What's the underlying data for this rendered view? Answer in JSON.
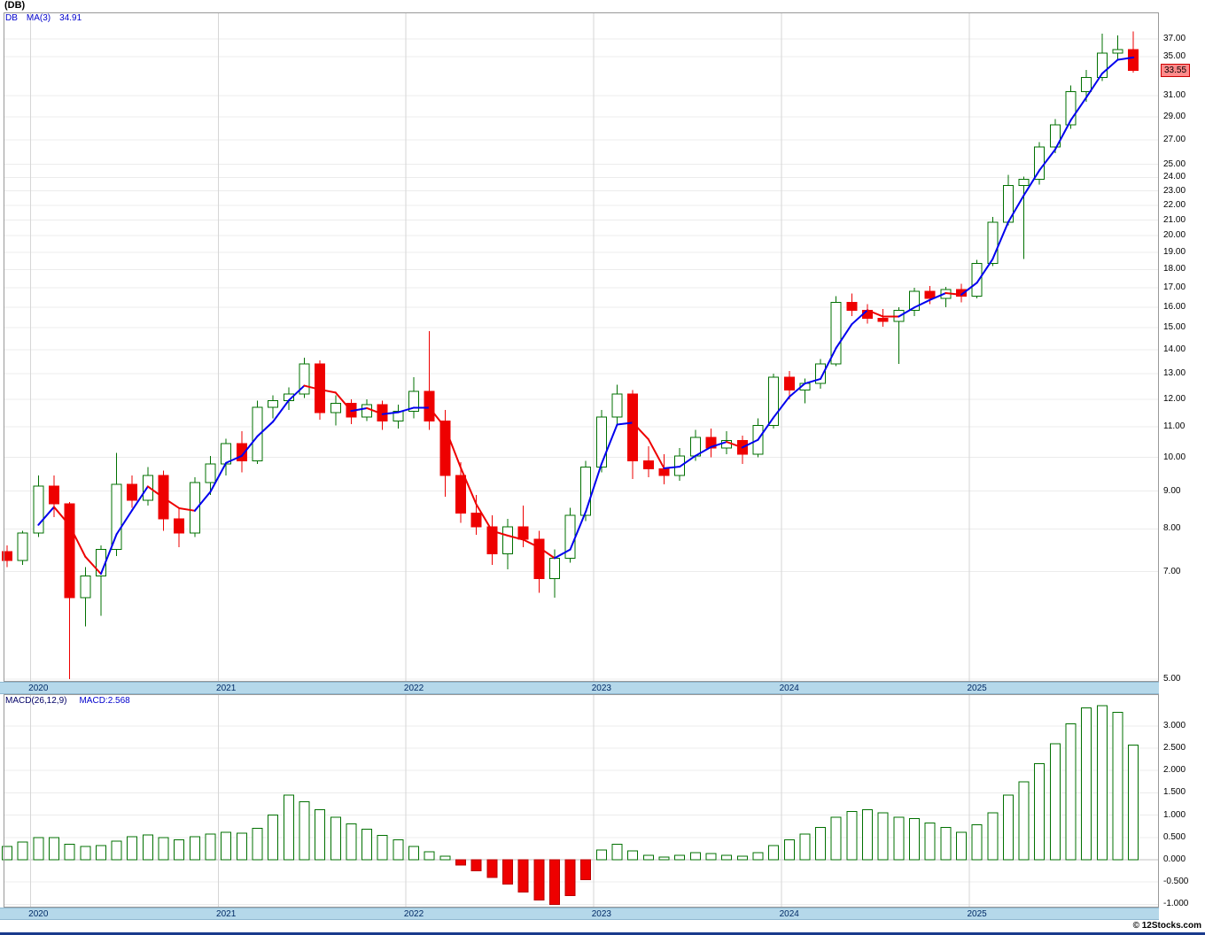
{
  "header": {
    "title": "(DB)"
  },
  "price_panel": {
    "legend": {
      "symbol": "DB",
      "ma_label": "MA(3)",
      "ma_value": "34.91"
    },
    "last_price_badge": "33.55"
  },
  "macd_panel": {
    "legend": {
      "indicator": "MACD(26,12,9)",
      "value_label": "MACD:2.568"
    }
  },
  "footer": {
    "copyright": "© 12Stocks.com"
  },
  "colors": {
    "up": "#007000",
    "down": "#ee0000",
    "down_stroke": "#bb0000",
    "ma_up": "#0000ee",
    "ma_down": "#ee0000",
    "grid": "#ececec",
    "zero_line": "#c0c0c0",
    "year_grid": "#d6d6d6",
    "panel_border": "#999999",
    "band_bg": "#b5d8ea",
    "badge_bg": "#ff8a8a",
    "badge_border": "#cc0000",
    "legend_blue": "#0000cc",
    "bottom_bar": "#1a3a8c"
  },
  "chart_data": [
    {
      "type": "candlestick",
      "name": "DB monthly price with MA(3)",
      "y_scale": "log",
      "ylim": [
        4.96,
        40.2
      ],
      "grid": true,
      "legend_position": "top-left",
      "last_price": 33.55,
      "ma": {
        "period": 3,
        "last_value": 34.91
      },
      "months": [
        "2019-11",
        "2019-12",
        "2020-01",
        "2020-02",
        "2020-03",
        "2020-04",
        "2020-05",
        "2020-06",
        "2020-07",
        "2020-08",
        "2020-09",
        "2020-10",
        "2020-11",
        "2020-12",
        "2021-01",
        "2021-02",
        "2021-03",
        "2021-04",
        "2021-05",
        "2021-06",
        "2021-07",
        "2021-08",
        "2021-09",
        "2021-10",
        "2021-11",
        "2021-12",
        "2022-01",
        "2022-02",
        "2022-03",
        "2022-04",
        "2022-05",
        "2022-06",
        "2022-07",
        "2022-08",
        "2022-09",
        "2022-10",
        "2022-11",
        "2022-12",
        "2023-01",
        "2023-02",
        "2023-03",
        "2023-04",
        "2023-05",
        "2023-06",
        "2023-07",
        "2023-08",
        "2023-09",
        "2023-10",
        "2023-11",
        "2023-12",
        "2024-01",
        "2024-02",
        "2024-03",
        "2024-04",
        "2024-05",
        "2024-06",
        "2024-07",
        "2024-08",
        "2024-09",
        "2024-10",
        "2024-11",
        "2024-12",
        "2025-01",
        "2025-02",
        "2025-03",
        "2025-04",
        "2025-05",
        "2025-06",
        "2025-07",
        "2025-08",
        "2025-09",
        "2025-10",
        "2025-11"
      ],
      "ohlc": [
        [
          7.45,
          7.6,
          7.1,
          7.25
        ],
        [
          7.25,
          7.95,
          7.15,
          7.9
        ],
        [
          7.9,
          9.45,
          7.8,
          9.15
        ],
        [
          9.15,
          9.45,
          8.3,
          8.65
        ],
        [
          8.65,
          8.7,
          5.0,
          6.45
        ],
        [
          6.45,
          7.1,
          5.9,
          6.9
        ],
        [
          6.9,
          7.6,
          6.1,
          7.5
        ],
        [
          7.5,
          10.15,
          7.35,
          9.2
        ],
        [
          9.2,
          9.45,
          8.55,
          8.75
        ],
        [
          8.75,
          9.7,
          8.6,
          9.45
        ],
        [
          9.45,
          9.6,
          7.95,
          8.25
        ],
        [
          8.25,
          8.55,
          7.55,
          7.9
        ],
        [
          7.9,
          9.4,
          7.8,
          9.25
        ],
        [
          9.25,
          10.05,
          8.9,
          9.8
        ],
        [
          9.8,
          10.6,
          9.45,
          10.45
        ],
        [
          10.45,
          10.85,
          9.55,
          9.9
        ],
        [
          9.9,
          11.95,
          9.8,
          11.7
        ],
        [
          11.7,
          12.15,
          11.3,
          11.95
        ],
        [
          11.95,
          12.45,
          11.6,
          12.2
        ],
        [
          12.2,
          13.65,
          12.05,
          13.4
        ],
        [
          13.4,
          13.55,
          11.25,
          11.5
        ],
        [
          11.5,
          12.15,
          11.05,
          11.85
        ],
        [
          11.85,
          12.0,
          11.1,
          11.35
        ],
        [
          11.35,
          12.0,
          11.2,
          11.8
        ],
        [
          11.8,
          11.95,
          10.9,
          11.2
        ],
        [
          11.2,
          11.8,
          10.95,
          11.55
        ],
        [
          11.55,
          12.85,
          11.3,
          12.3
        ],
        [
          12.3,
          14.85,
          10.9,
          11.2
        ],
        [
          11.2,
          11.6,
          8.85,
          9.45
        ],
        [
          9.45,
          9.85,
          8.15,
          8.4
        ],
        [
          8.4,
          8.9,
          7.85,
          8.05
        ],
        [
          8.05,
          8.35,
          7.15,
          7.4
        ],
        [
          7.4,
          8.25,
          7.05,
          8.05
        ],
        [
          8.05,
          8.6,
          7.55,
          7.75
        ],
        [
          7.75,
          7.95,
          6.55,
          6.85
        ],
        [
          6.85,
          7.5,
          6.45,
          7.3
        ],
        [
          7.3,
          8.55,
          7.2,
          8.35
        ],
        [
          8.35,
          9.9,
          8.2,
          9.7
        ],
        [
          9.7,
          11.6,
          9.55,
          11.35
        ],
        [
          11.35,
          12.55,
          11.1,
          12.2
        ],
        [
          12.2,
          12.35,
          9.35,
          9.9
        ],
        [
          9.9,
          10.35,
          9.4,
          9.65
        ],
        [
          9.65,
          10.1,
          9.2,
          9.45
        ],
        [
          9.45,
          10.3,
          9.3,
          10.05
        ],
        [
          10.05,
          10.9,
          9.9,
          10.65
        ],
        [
          10.65,
          10.95,
          10.0,
          10.3
        ],
        [
          10.3,
          10.85,
          10.1,
          10.55
        ],
        [
          10.55,
          10.7,
          9.8,
          10.1
        ],
        [
          10.1,
          11.3,
          10.0,
          11.05
        ],
        [
          11.05,
          13.0,
          10.95,
          12.85
        ],
        [
          12.85,
          13.1,
          12.0,
          12.35
        ],
        [
          12.35,
          12.8,
          11.85,
          12.6
        ],
        [
          12.6,
          13.6,
          12.4,
          13.4
        ],
        [
          13.4,
          16.55,
          13.3,
          16.25
        ],
        [
          16.25,
          16.7,
          15.55,
          15.85
        ],
        [
          15.85,
          16.15,
          15.2,
          15.45
        ],
        [
          15.45,
          15.9,
          15.05,
          15.3
        ],
        [
          15.3,
          16.0,
          13.4,
          15.85
        ],
        [
          15.85,
          17.0,
          15.55,
          16.8
        ],
        [
          16.8,
          17.1,
          16.15,
          16.45
        ],
        [
          16.45,
          17.05,
          16.0,
          16.9
        ],
        [
          16.9,
          17.2,
          16.25,
          16.55
        ],
        [
          16.55,
          18.55,
          16.45,
          18.35
        ],
        [
          18.35,
          21.2,
          18.2,
          20.85
        ],
        [
          20.85,
          24.2,
          20.65,
          23.4
        ],
        [
          23.4,
          24.05,
          18.6,
          23.85
        ],
        [
          23.85,
          26.8,
          23.45,
          26.4
        ],
        [
          26.4,
          28.8,
          25.9,
          28.3
        ],
        [
          28.3,
          32.0,
          27.95,
          31.4
        ],
        [
          31.4,
          33.6,
          30.4,
          32.8
        ],
        [
          32.8,
          37.6,
          32.45,
          35.4
        ],
        [
          35.4,
          37.4,
          34.55,
          35.8
        ],
        [
          35.8,
          37.9,
          33.3,
          33.55
        ]
      ],
      "y_ticks": [
        {
          "v": 37,
          "label": "37.00"
        },
        {
          "v": 35,
          "label": "35.00"
        },
        {
          "v": 31,
          "label": "31.00"
        },
        {
          "v": 29,
          "label": "29.00"
        },
        {
          "v": 27,
          "label": "27.00"
        },
        {
          "v": 25,
          "label": "25.00"
        },
        {
          "v": 24,
          "label": "24.00"
        },
        {
          "v": 23,
          "label": "23.00"
        },
        {
          "v": 22,
          "label": "22.00"
        },
        {
          "v": 21,
          "label": "21.00"
        },
        {
          "v": 20,
          "label": "20.00"
        },
        {
          "v": 19,
          "label": "19.00"
        },
        {
          "v": 18,
          "label": "18.00"
        },
        {
          "v": 17,
          "label": "17.00"
        },
        {
          "v": 16,
          "label": "16.00"
        },
        {
          "v": 15,
          "label": "15.00"
        },
        {
          "v": 14,
          "label": "14.00"
        },
        {
          "v": 13,
          "label": "13.00"
        },
        {
          "v": 12,
          "label": "12.00"
        },
        {
          "v": 11,
          "label": "11.00"
        },
        {
          "v": 10,
          "label": "10.00"
        },
        {
          "v": 9,
          "label": "9.00"
        },
        {
          "v": 8,
          "label": "8.00"
        },
        {
          "v": 7,
          "label": "7.00"
        },
        {
          "v": 5,
          "label": "5.00"
        }
      ],
      "x_ticks": [
        {
          "label": "2020",
          "index": 2
        },
        {
          "label": "2021",
          "index": 14
        },
        {
          "label": "2022",
          "index": 26
        },
        {
          "label": "2023",
          "index": 38
        },
        {
          "label": "2024",
          "index": 50
        },
        {
          "label": "2025",
          "index": 62
        }
      ]
    },
    {
      "type": "bar",
      "name": "MACD(26,12,9) histogram",
      "ylim": [
        -1.071,
        3.71
      ],
      "grid": true,
      "last_value": 2.568,
      "values": [
        0.3,
        0.4,
        0.5,
        0.5,
        0.35,
        0.3,
        0.32,
        0.42,
        0.52,
        0.56,
        0.5,
        0.45,
        0.52,
        0.58,
        0.62,
        0.6,
        0.7,
        1.0,
        1.45,
        1.3,
        1.12,
        0.95,
        0.8,
        0.68,
        0.55,
        0.45,
        0.3,
        0.18,
        0.08,
        -0.12,
        -0.25,
        -0.4,
        -0.55,
        -0.72,
        -0.9,
        -1.0,
        -0.8,
        -0.45,
        0.22,
        0.35,
        0.2,
        0.1,
        0.06,
        0.1,
        0.16,
        0.14,
        0.1,
        0.08,
        0.16,
        0.32,
        0.45,
        0.58,
        0.72,
        0.95,
        1.08,
        1.12,
        1.05,
        0.95,
        0.92,
        0.82,
        0.72,
        0.62,
        0.78,
        1.05,
        1.45,
        1.75,
        2.15,
        2.6,
        3.05,
        3.4,
        3.45,
        3.3,
        2.568
      ],
      "y_ticks": [
        {
          "v": 3,
          "label": "3.000"
        },
        {
          "v": 2.5,
          "label": "2.500"
        },
        {
          "v": 2,
          "label": "2.000"
        },
        {
          "v": 1.5,
          "label": "1.500"
        },
        {
          "v": 1,
          "label": "1.000"
        },
        {
          "v": 0.5,
          "label": "0.500"
        },
        {
          "v": 0,
          "label": "0.000"
        },
        {
          "v": -0.5,
          "label": "-0.500"
        },
        {
          "v": -1,
          "label": "-1.000"
        }
      ]
    }
  ]
}
